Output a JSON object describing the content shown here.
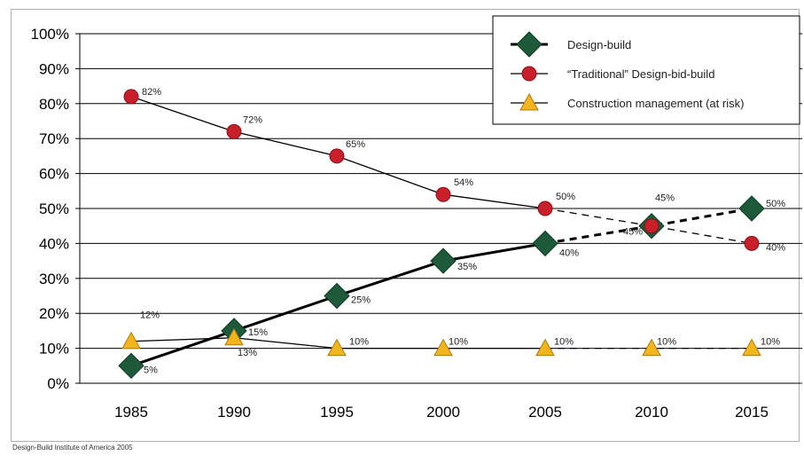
{
  "chart_data": {
    "type": "line",
    "categories": [
      "1985",
      "1990",
      "1995",
      "2000",
      "2005",
      "2010",
      "2015"
    ],
    "ylim": [
      0,
      100
    ],
    "yticks": [
      "0%",
      "10%",
      "20%",
      "30%",
      "40%",
      "50%",
      "60%",
      "70%",
      "80%",
      "90%",
      "100%"
    ],
    "grid": true,
    "legend_position": "top-right",
    "projected_from": "2005",
    "series": [
      {
        "name": "Design-build",
        "marker": "diamond",
        "color": "#1e5a3a",
        "values": [
          5,
          15,
          25,
          35,
          40,
          45,
          50
        ],
        "labels": [
          "5%",
          "15%",
          "25%",
          "35%",
          "40%",
          "45%",
          "50%"
        ]
      },
      {
        "name": "“Traditional” Design-bid-build",
        "marker": "circle",
        "color": "#c8202a",
        "values": [
          82,
          72,
          65,
          54,
          50,
          45,
          40
        ],
        "labels": [
          "82%",
          "72%",
          "65%",
          "54%",
          "50%",
          "45%",
          "40%"
        ]
      },
      {
        "name": "Construction management (at risk)",
        "marker": "triangle",
        "color": "#f2b51e",
        "values": [
          12,
          13,
          10,
          10,
          10,
          10,
          10
        ],
        "labels": [
          "12%",
          "13%",
          "10%",
          "10%",
          "10%",
          "10%",
          "10%"
        ]
      }
    ]
  },
  "source": "Design-Build Institute of America 2005"
}
